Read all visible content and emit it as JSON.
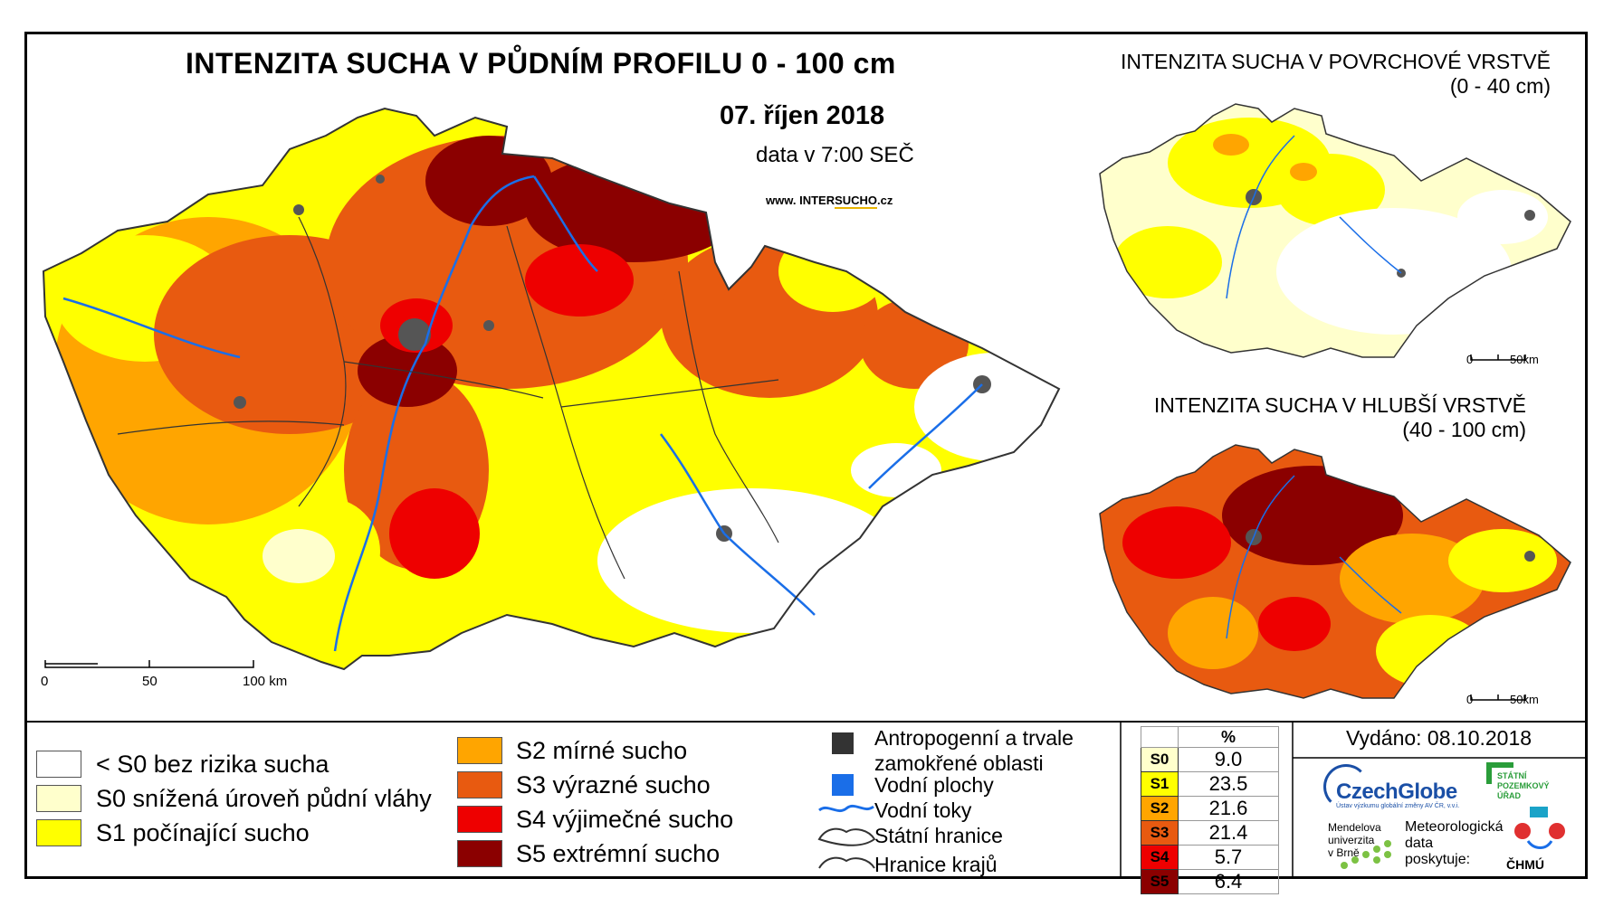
{
  "map": {
    "title": "INTENZITA SUCHA V PŮDNÍM PROFILU 0 - 100 cm",
    "date": "07. říjen 2018",
    "data_time": "data v 7:00 SEČ",
    "website_prefix": "www. INTER",
    "website_accent": "SUCHO",
    "website_suffix": ".cz",
    "scale_labels": [
      "0",
      "50",
      "100 km"
    ]
  },
  "insets": {
    "surface": {
      "title_line1": "INTENZITA SUCHA V POVRCHOVÉ VRSTVĚ",
      "title_line2": "(0 - 40 cm)",
      "scale_0": "0",
      "scale_50": "50km"
    },
    "deep": {
      "title_line1": "INTENZITA SUCHA V HLUBŠÍ VRSTVĚ",
      "title_line2": "(40 - 100 cm)",
      "scale_0": "0",
      "scale_50": "50km"
    }
  },
  "legend": {
    "classes": [
      {
        "label": "< S0 bez rizika sucha",
        "color": "#ffffff"
      },
      {
        "label": "S0 snížená úroveň půdní vláhy",
        "color": "#ffffcc"
      },
      {
        "label": "S1 počínající sucho",
        "color": "#ffff00"
      },
      {
        "label": "S2 mírné sucho",
        "color": "#ffa500"
      },
      {
        "label": "S3 výrazné sucho",
        "color": "#e85a10"
      },
      {
        "label": "S4 výjimečné sucho",
        "color": "#ee0000"
      },
      {
        "label": "S5 extrémní sucho",
        "color": "#8b0000"
      }
    ],
    "symbols": {
      "anthropogenic_line1": "Antropogenní a trvale",
      "anthropogenic_line2": "zamokřené oblasti",
      "water_bodies": "Vodní plochy",
      "water_courses": "Vodní toky",
      "state_border": "Státní hranice",
      "region_border": "Hranice krajů"
    }
  },
  "stats": {
    "header": "%",
    "rows": [
      {
        "cls": "S0",
        "pct": "9.0",
        "color": "#ffffcc"
      },
      {
        "cls": "S1",
        "pct": "23.5",
        "color": "#ffff00"
      },
      {
        "cls": "S2",
        "pct": "21.6",
        "color": "#ffa500"
      },
      {
        "cls": "S3",
        "pct": "21.4",
        "color": "#e85a10"
      },
      {
        "cls": "S4",
        "pct": "5.7",
        "color": "#ee0000"
      },
      {
        "cls": "S5",
        "pct": "6.4",
        "color": "#8b0000"
      }
    ]
  },
  "footer": {
    "issued": "Vydáno: 08.10.2018",
    "czechglobe": "CzechGlobe",
    "czechglobe_sub": "Ústav výzkumu globální změny AV ČR, v.v.i.",
    "spu": [
      "STÁTNÍ",
      "POZEMKOVÝ",
      "ÚŘAD"
    ],
    "mendel": [
      "Mendelova",
      "univerzita",
      "v Brně"
    ],
    "meteo": [
      "Meteorologická",
      "data",
      "poskytuje:"
    ],
    "chmu": "ČHMÚ"
  }
}
